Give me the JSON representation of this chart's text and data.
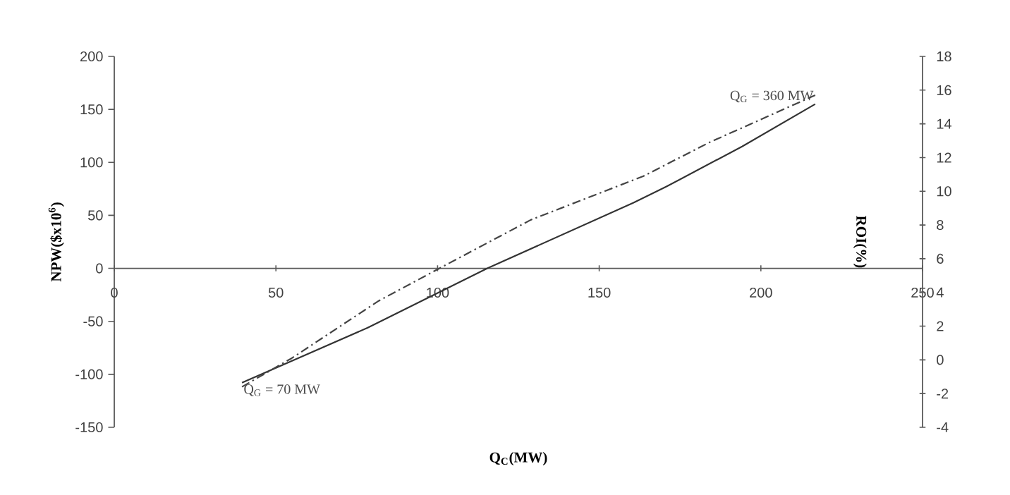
{
  "chart_data": {
    "type": "line",
    "xlabel": "Q$_{C}$(MW)",
    "ylabel": "NPW($x10$^{6}$)",
    "y2label": "ROI(%)",
    "xlim": [
      0,
      250
    ],
    "xticks": [
      0,
      50,
      100,
      150,
      200,
      250
    ],
    "ylim": [
      -150,
      200
    ],
    "yticks": [
      -150,
      -100,
      -50,
      0,
      50,
      100,
      150,
      200
    ],
    "y2lim": [
      -4,
      18
    ],
    "y2ticks": [
      -4,
      -2,
      0,
      2,
      4,
      6,
      8,
      10,
      12,
      14,
      16,
      18
    ],
    "series": [
      {
        "color": "#333333",
        "line_style": "solid",
        "x": [
          39.5,
          78.4,
          115.4,
          160.6,
          170.7,
          194.2,
          216.8
        ],
        "values": [
          -108,
          -56,
          0,
          62,
          77,
          115,
          155
        ]
      },
      {
        "color": "#444444",
        "line_style": "dashdot",
        "axis": "y2",
        "x": [
          39.5,
          54.9,
          81.8,
          100.3,
          128.8,
          163.7,
          184.1,
          216.8
        ],
        "values": [
          -1.6,
          0.1,
          3.5,
          5.4,
          8.3,
          10.9,
          12.9,
          15.7
        ]
      }
    ],
    "annotations": [
      {
        "text": "Q$_{G}$ = 360 MW",
        "x": 216.8,
        "y": 155
      },
      {
        "text": "Q$_{G}$ = 70 MW",
        "x": 39.5,
        "y": -108
      }
    ]
  }
}
